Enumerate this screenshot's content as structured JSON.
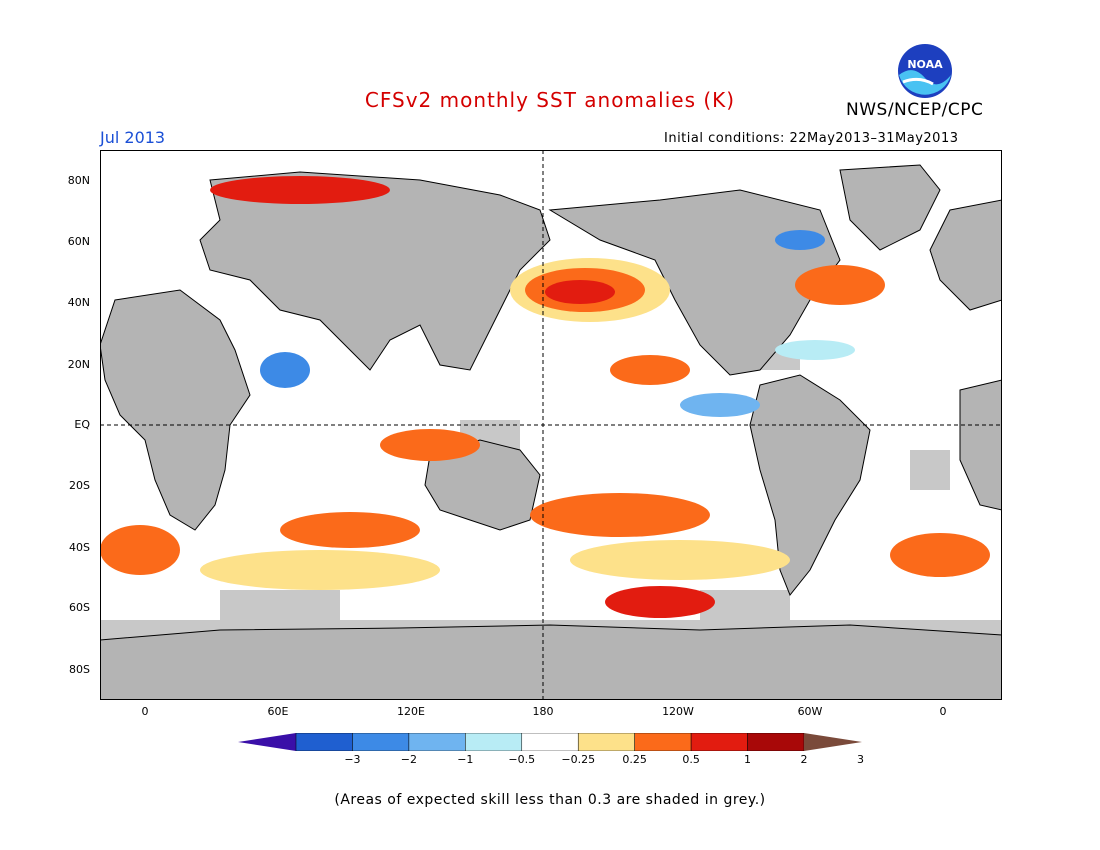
{
  "header": {
    "title": "CFSv2 monthly SST anomalies (K)",
    "agency": "NWS/NCEP/CPC",
    "logo_text": "NOAA",
    "month": "Jul 2013",
    "initial_conditions": "Initial conditions: 22May2013–31May2013"
  },
  "map": {
    "lat_labels": [
      "80N",
      "60N",
      "40N",
      "20N",
      "EQ",
      "20S",
      "40S",
      "60S",
      "80S"
    ],
    "lon_labels": [
      "0",
      "60E",
      "120E",
      "180",
      "120W",
      "60W",
      "0"
    ],
    "land_color": "#b4b4b4",
    "low_skill_color": "#c8c8c8",
    "ocean_color": "#ffffff"
  },
  "colorbar": {
    "labels": [
      "−3",
      "−2",
      "−1",
      "−0.5",
      "−0.25",
      "0.25",
      "0.5",
      "1",
      "2",
      "3"
    ],
    "colors": [
      "#3a0fa8",
      "#1f5fd0",
      "#3d8ae6",
      "#6fb4f0",
      "#b8ecf5",
      "#ffffff",
      "#fde18a",
      "#fb6a1a",
      "#e21c10",
      "#a80808",
      "#7a4a3a"
    ]
  },
  "footnote": "(Areas of expected skill less than 0.3 are shaded in grey.)"
}
